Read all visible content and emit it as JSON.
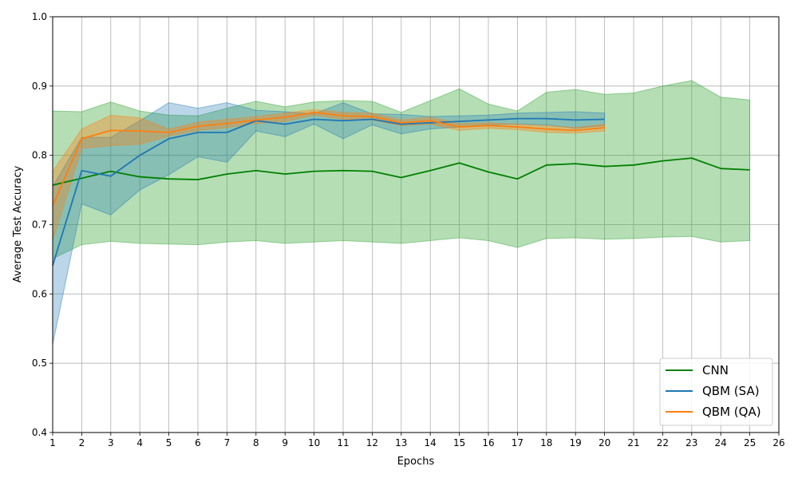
{
  "chart_data": {
    "type": "line",
    "title": "",
    "xlabel": "Epochs",
    "ylabel": "Average Test Accuracy",
    "xlim": [
      1,
      26
    ],
    "ylim": [
      0.4,
      1.0
    ],
    "xticks": [
      1,
      2,
      3,
      4,
      5,
      6,
      7,
      8,
      9,
      10,
      11,
      12,
      13,
      14,
      15,
      16,
      17,
      18,
      19,
      20,
      21,
      22,
      23,
      24,
      25,
      26
    ],
    "yticks": [
      0.4,
      0.5,
      0.6,
      0.7,
      0.8,
      0.9,
      1.0
    ],
    "ytick_labels": [
      "0.4",
      "0.5",
      "0.6",
      "0.7",
      "0.8",
      "0.9",
      "1.0"
    ],
    "grid": true,
    "legend_position": "bottom-right",
    "series": [
      {
        "name": "CNN",
        "color": "#008000",
        "band_color": "#2ca02c",
        "x": [
          1,
          2,
          3,
          4,
          5,
          6,
          7,
          8,
          9,
          10,
          11,
          12,
          13,
          14,
          15,
          16,
          17,
          18,
          19,
          20,
          21,
          22,
          23,
          24,
          25
        ],
        "values": [
          0.757,
          0.767,
          0.777,
          0.769,
          0.766,
          0.765,
          0.773,
          0.778,
          0.773,
          0.777,
          0.778,
          0.777,
          0.768,
          0.778,
          0.789,
          0.776,
          0.766,
          0.786,
          0.788,
          0.784,
          0.786,
          0.792,
          0.796,
          0.781,
          0.779
        ],
        "upper": [
          0.864,
          0.863,
          0.877,
          0.864,
          0.858,
          0.857,
          0.868,
          0.878,
          0.87,
          0.877,
          0.879,
          0.878,
          0.862,
          0.879,
          0.896,
          0.874,
          0.864,
          0.891,
          0.895,
          0.888,
          0.89,
          0.9,
          0.908,
          0.884,
          0.88
        ],
        "lower": [
          0.651,
          0.671,
          0.676,
          0.673,
          0.672,
          0.671,
          0.675,
          0.677,
          0.673,
          0.675,
          0.677,
          0.675,
          0.673,
          0.677,
          0.681,
          0.677,
          0.667,
          0.68,
          0.681,
          0.679,
          0.68,
          0.682,
          0.683,
          0.675,
          0.677
        ]
      },
      {
        "name": "QBM (SA)",
        "color": "#1f77b4",
        "band_color": "#1f77b4",
        "x": [
          1,
          2,
          3,
          4,
          5,
          6,
          7,
          8,
          9,
          10,
          11,
          12,
          13,
          14,
          15,
          16,
          17,
          18,
          19,
          20
        ],
        "values": [
          0.641,
          0.778,
          0.77,
          0.8,
          0.824,
          0.833,
          0.833,
          0.85,
          0.845,
          0.852,
          0.85,
          0.852,
          0.845,
          0.847,
          0.849,
          0.851,
          0.853,
          0.853,
          0.851,
          0.852
        ],
        "upper": [
          0.755,
          0.826,
          0.826,
          0.85,
          0.876,
          0.868,
          0.876,
          0.865,
          0.863,
          0.86,
          0.876,
          0.86,
          0.859,
          0.856,
          0.857,
          0.858,
          0.861,
          0.862,
          0.863,
          0.861
        ],
        "lower": [
          0.527,
          0.73,
          0.714,
          0.75,
          0.772,
          0.798,
          0.79,
          0.835,
          0.827,
          0.845,
          0.824,
          0.844,
          0.831,
          0.838,
          0.841,
          0.844,
          0.845,
          0.844,
          0.839,
          0.843
        ]
      },
      {
        "name": "QBM (QA)",
        "color": "#ff7f0e",
        "band_color": "#ff7f0e",
        "x": [
          1,
          2,
          3,
          4,
          5,
          6,
          7,
          8,
          9,
          10,
          11,
          12,
          13,
          14,
          15,
          16,
          17,
          18,
          19,
          20
        ],
        "values": [
          0.727,
          0.824,
          0.836,
          0.835,
          0.833,
          0.842,
          0.846,
          0.851,
          0.855,
          0.862,
          0.857,
          0.856,
          0.847,
          0.85,
          0.841,
          0.843,
          0.841,
          0.838,
          0.836,
          0.84
        ],
        "upper": [
          0.777,
          0.838,
          0.858,
          0.854,
          0.838,
          0.848,
          0.852,
          0.856,
          0.861,
          0.866,
          0.862,
          0.861,
          0.851,
          0.855,
          0.846,
          0.847,
          0.845,
          0.843,
          0.84,
          0.845
        ],
        "lower": [
          0.677,
          0.81,
          0.814,
          0.816,
          0.828,
          0.836,
          0.84,
          0.846,
          0.849,
          0.858,
          0.852,
          0.851,
          0.843,
          0.845,
          0.836,
          0.839,
          0.837,
          0.833,
          0.832,
          0.835
        ]
      }
    ]
  }
}
